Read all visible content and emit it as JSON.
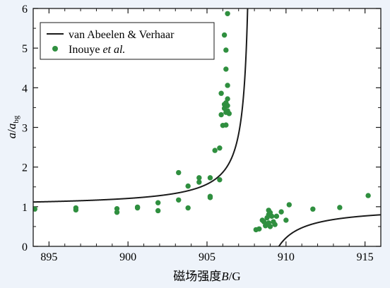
{
  "chart_data": {
    "type": "scatter",
    "xlim": [
      894,
      916
    ],
    "ylim": [
      0,
      6
    ],
    "x_ticks": [
      895,
      900,
      905,
      910,
      915
    ],
    "y_ticks": [
      0,
      1,
      2,
      3,
      4,
      5,
      6
    ],
    "xlabel_prefix": "磁场强度",
    "xlabel_var": "B",
    "xlabel_unit": "/G",
    "ylabel_var": "a",
    "ylabel_sep": "/",
    "ylabel_denom": "a",
    "ylabel_sub": "bg",
    "legend_position": "top-left",
    "series": [
      {
        "name": "van Abeelen & Verhaar",
        "type": "line",
        "color": "#1a1a1a",
        "model": {
          "a_bg": 1,
          "B0": 907.9,
          "delta": 1.65
        }
      },
      {
        "name_plain": "Inouye ",
        "name_italic": "et al.",
        "type": "scatter",
        "color": "#2f8f3f",
        "points": [
          [
            894.1,
            0.94
          ],
          [
            896.7,
            0.97
          ],
          [
            896.7,
            0.92
          ],
          [
            899.3,
            0.95
          ],
          [
            899.3,
            0.86
          ],
          [
            900.6,
            0.99
          ],
          [
            900.6,
            0.97
          ],
          [
            901.9,
            1.1
          ],
          [
            901.9,
            0.9
          ],
          [
            903.2,
            1.86
          ],
          [
            903.2,
            1.17
          ],
          [
            903.8,
            1.52
          ],
          [
            903.8,
            0.97
          ],
          [
            904.5,
            1.73
          ],
          [
            904.5,
            1.62
          ],
          [
            905.2,
            1.73
          ],
          [
            905.2,
            1.26
          ],
          [
            905.2,
            1.23
          ],
          [
            905.5,
            2.42
          ],
          [
            905.8,
            2.48
          ],
          [
            905.8,
            1.68
          ],
          [
            905.9,
            3.86
          ],
          [
            905.9,
            3.32
          ],
          [
            906.0,
            3.05
          ],
          [
            906.1,
            5.33
          ],
          [
            906.1,
            3.58
          ],
          [
            906.1,
            3.48
          ],
          [
            906.2,
            4.95
          ],
          [
            906.2,
            4.47
          ],
          [
            906.2,
            3.62
          ],
          [
            906.2,
            3.38
          ],
          [
            906.2,
            3.06
          ],
          [
            906.3,
            5.87
          ],
          [
            906.3,
            4.06
          ],
          [
            906.3,
            3.72
          ],
          [
            906.3,
            3.55
          ],
          [
            906.3,
            3.42
          ],
          [
            906.4,
            3.35
          ],
          [
            908.1,
            0.42
          ],
          [
            908.3,
            0.44
          ],
          [
            908.5,
            0.66
          ],
          [
            908.6,
            0.62
          ],
          [
            908.7,
            0.52
          ],
          [
            908.8,
            0.72
          ],
          [
            908.8,
            0.55
          ],
          [
            908.9,
            0.91
          ],
          [
            908.9,
            0.8
          ],
          [
            908.9,
            0.59
          ],
          [
            909.0,
            0.85
          ],
          [
            909.0,
            0.5
          ],
          [
            909.1,
            0.76
          ],
          [
            909.2,
            0.62
          ],
          [
            909.3,
            0.55
          ],
          [
            909.4,
            0.76
          ],
          [
            909.7,
            0.87
          ],
          [
            910.0,
            0.66
          ],
          [
            910.2,
            1.05
          ],
          [
            911.7,
            0.94
          ],
          [
            913.4,
            0.98
          ],
          [
            915.2,
            1.28
          ]
        ]
      }
    ]
  }
}
